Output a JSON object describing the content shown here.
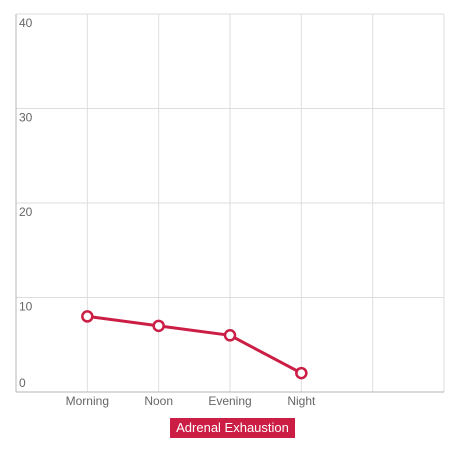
{
  "colors": {
    "series": "#cc1e44",
    "grid": "#dedede",
    "axis": "#b4b4b4",
    "tick_text": "#666666",
    "background": "#ffffff"
  },
  "chart_data": {
    "type": "line",
    "categories": [
      "Morning",
      "Noon",
      "Evening",
      "Night"
    ],
    "x_extra_slots": 1,
    "ylim": [
      0,
      40
    ],
    "yticks": [
      0,
      10,
      20,
      30,
      40
    ],
    "grid": true,
    "legend_position": "bottom-center",
    "series": [
      {
        "name": "Adrenal Exhaustion",
        "values": [
          8,
          7,
          6,
          2
        ]
      }
    ]
  }
}
